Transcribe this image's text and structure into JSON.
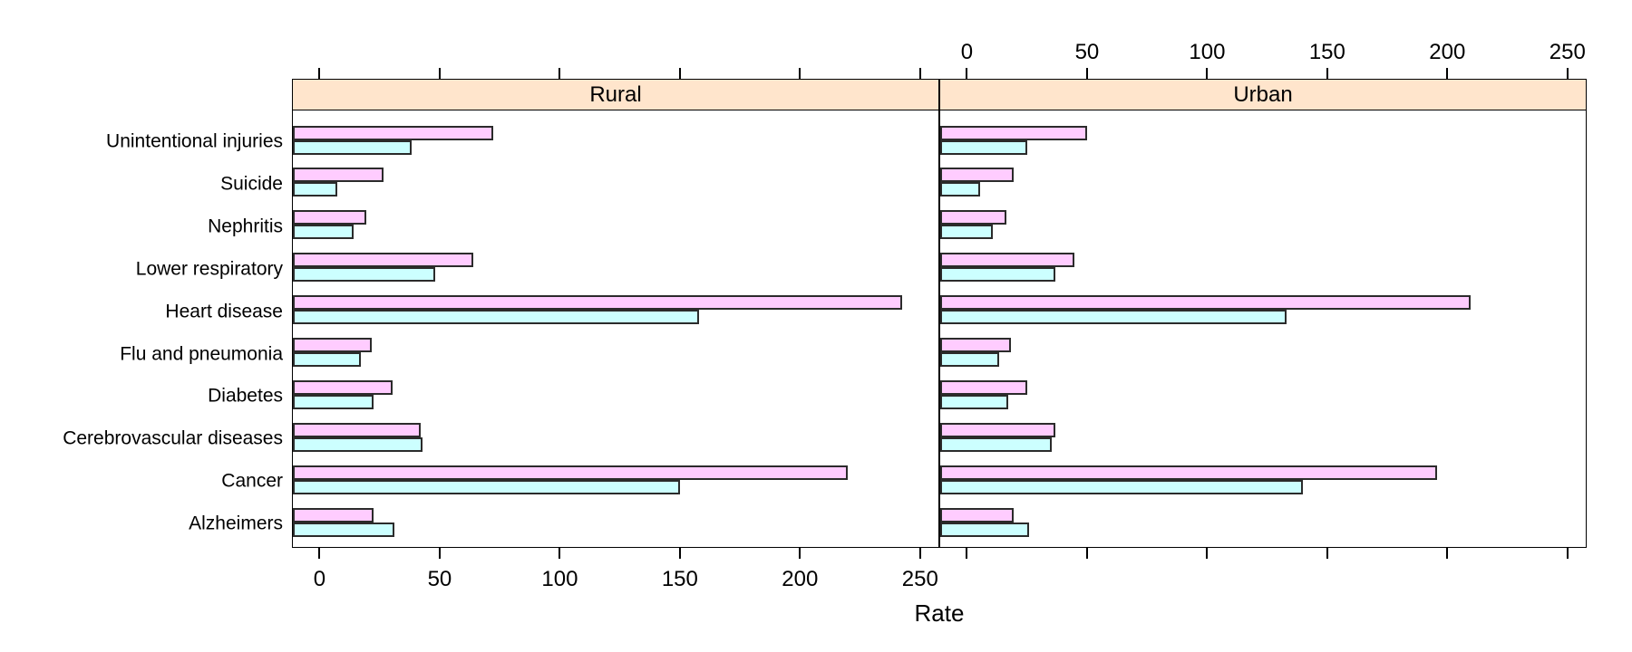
{
  "chart_data": {
    "type": "bar",
    "orientation": "horizontal",
    "xlabel": "Rate",
    "x_ticks": [
      0,
      50,
      100,
      150,
      200,
      250
    ],
    "xlim": [
      -11.5,
      258
    ],
    "grid": false,
    "legend_position": "none",
    "panels": [
      {
        "label": "Rural",
        "series": [
          {
            "name": "pink-top-bar",
            "color_key": "bar_pink",
            "values": [
              72,
              26.5,
              19,
              64,
              243,
              21.5,
              30,
              42,
              220,
              22
            ]
          },
          {
            "name": "cyan-bottom-bar",
            "color_key": "bar_cyan",
            "values": [
              38,
              7,
              14,
              48,
              158,
              17,
              22,
              42.5,
              150,
              31
            ]
          }
        ]
      },
      {
        "label": "Urban",
        "series": [
          {
            "name": "pink-top-bar",
            "color_key": "bar_pink",
            "values": [
              50,
              19,
              16,
              44.5,
              210,
              18,
              25,
              36.5,
              196,
              19
            ]
          },
          {
            "name": "cyan-bottom-bar",
            "color_key": "bar_cyan",
            "values": [
              25,
              5,
              10.5,
              36.5,
              133,
              13,
              17,
              35,
              140,
              25.5
            ]
          }
        ]
      }
    ],
    "categories": [
      "Unintentional injuries",
      "Suicide",
      "Nephritis",
      "Lower respiratory",
      "Heart disease",
      "Flu and pneumonia",
      "Diabetes",
      "Cerebrovascular diseases",
      "Cancer",
      "Alzheimers"
    ],
    "axis_label_sides": {
      "top_labels_panel": "Urban",
      "bottom_labels_panel": "Rural"
    }
  },
  "colors": {
    "bar_pink": "#FFCCFF",
    "bar_cyan": "#CCFFFF",
    "bar_border": "#2b2b2b",
    "strip_background": "#FFE5CC",
    "panel_border": "#000000",
    "axis_text": "#000000",
    "background": "#FFFFFF"
  }
}
